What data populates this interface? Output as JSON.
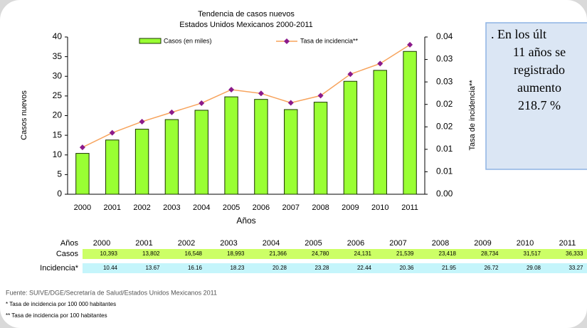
{
  "chart_data": {
    "type": "bar",
    "title": "Tendencia de casos nuevos",
    "subtitle": "Estados Unidos Mexicanos 2000-2011",
    "x_label": "Años",
    "y_label": "Casos nuevos",
    "y2_label": "Tasa de incidencia**",
    "categories": [
      "2000",
      "2001",
      "2002",
      "2003",
      "2004",
      "2005",
      "2006",
      "2007",
      "2008",
      "2009",
      "2010",
      "2011"
    ],
    "series": [
      {
        "name": "Casos (en miles)",
        "type": "bar",
        "color": "#99ff33",
        "values": [
          10.393,
          13.802,
          16.548,
          18.993,
          21.366,
          24.78,
          24.131,
          21.539,
          23.418,
          28.734,
          31.517,
          36.333
        ]
      },
      {
        "name": "Tasa de incidencia**",
        "type": "line",
        "axis": "y2",
        "color": "#f7a35c",
        "marker_color": "#8b1a8b",
        "values": [
          0.01044,
          0.01367,
          0.01616,
          0.01823,
          0.02028,
          0.02328,
          0.02244,
          0.02036,
          0.02195,
          0.02672,
          0.02908,
          0.03327
        ]
      }
    ],
    "ylim": [
      0,
      40
    ],
    "yticks": [
      0,
      5,
      10,
      15,
      20,
      25,
      30,
      35,
      40
    ],
    "y2lim": [
      0,
      0.035
    ],
    "y2ticks": [
      {
        "value": 0,
        "label": "0.00"
      },
      {
        "value": 0.005,
        "label": "0.01"
      },
      {
        "value": 0.01,
        "label": "0.01"
      },
      {
        "value": 0.015,
        "label": "0.02"
      },
      {
        "value": 0.02,
        "label": "0.02"
      },
      {
        "value": 0.025,
        "label": "0.03"
      },
      {
        "value": 0.03,
        "label": "0.03"
      },
      {
        "value": 0.035,
        "label": "0.04"
      }
    ],
    "grid": false,
    "legend": "top"
  },
  "table": {
    "header": [
      "Años",
      "2000",
      "2001",
      "2002",
      "2003",
      "2004",
      "2005",
      "2006",
      "2007",
      "2008",
      "2009",
      "2010",
      "2011"
    ],
    "rows": [
      [
        "Casos",
        "10,393",
        "13,802",
        "16,548",
        "18,993",
        "21,366",
        "24,780",
        "24,131",
        "21,539",
        "23,418",
        "28,734",
        "31,517",
        "36,333"
      ],
      [
        "Incidencia*",
        "10.44",
        "13.67",
        "16.16",
        "18.23",
        "20.28",
        "23.28",
        "22.44",
        "20.36",
        "21.95",
        "26.72",
        "29.08",
        "33.27"
      ]
    ]
  },
  "text_box": {
    "lines": [
      ". En los últ",
      "11 años se",
      "registrado",
      "aumento",
      "218.7 %"
    ]
  },
  "footnotes": [
    "Fuente: SUIVE/DGE/Secretaría de Salud/Estados Unidos Mexicanos 2011",
    "* Tasa de incidencia por 100 000 habitantes",
    "** Tasa de incidencia por 100 habitantes"
  ]
}
